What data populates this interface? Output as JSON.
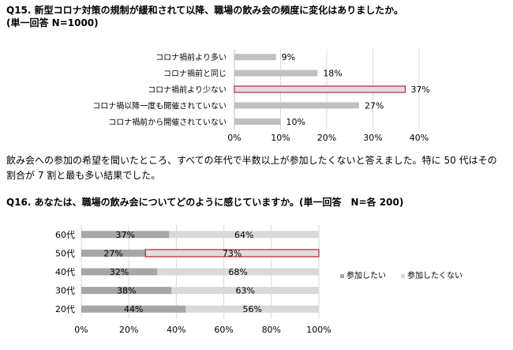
{
  "q15": {
    "title": "Q15.  新型コロナ対策の規制が緩和されて以降、職場の飲み会の頻度に変化はありましたか。",
    "subtitle": "(単一回答 N=1000)"
  },
  "paragraph": "飲み会への参加の希望を聞いたところ、すべての年代で半数以上が参加したくないと答えました。特に 50 代はその割合が 7 割と最も多い結果でした。",
  "q16": {
    "title": "Q16.  あなたは、職場の飲み会についてどのように感じていますか。(単一回答　N=各 200)"
  },
  "colors": {
    "bar_gray": "#c0c0c0",
    "highlight_fill": "#dedede",
    "highlight_border": "#c0202e",
    "series_dark": "#a6a6a6",
    "series_light": "#d9d9d9",
    "grid": "#d9d9d9",
    "axis_text": "#000000"
  },
  "chart_data": [
    {
      "type": "bar",
      "orientation": "horizontal",
      "categories": [
        "コロナ禍前より多い",
        "コロナ禍前と同じ",
        "コロナ禍前より少ない",
        "コロナ禍以降一度も開催されていない",
        "コロナ禍前から開催されていない"
      ],
      "values": [
        9,
        18,
        37,
        27,
        10
      ],
      "value_labels": [
        "9%",
        "18%",
        "37%",
        "27%",
        "10%"
      ],
      "highlight_index": 2,
      "xlim": [
        0,
        40
      ],
      "x_ticks": [
        "0%",
        "10%",
        "20%",
        "30%",
        "40%"
      ],
      "grid": true
    },
    {
      "type": "bar",
      "orientation": "horizontal",
      "stacked": true,
      "categories": [
        "60代",
        "50代",
        "40代",
        "30代",
        "20代"
      ],
      "series": [
        {
          "name": "参加したい",
          "values": [
            37,
            27,
            32,
            38,
            44
          ],
          "labels": [
            "37%",
            "27%",
            "32%",
            "38%",
            "44%"
          ]
        },
        {
          "name": "参加したくない",
          "values": [
            64,
            73,
            68,
            63,
            56
          ],
          "labels": [
            "64%",
            "73%",
            "68%",
            "63%",
            "56%"
          ]
        }
      ],
      "highlight_index": 1,
      "xlim": [
        0,
        100
      ],
      "x_ticks": [
        "0%",
        "20%",
        "40%",
        "60%",
        "80%",
        "100%"
      ],
      "legend_position": "right",
      "grid": true
    }
  ]
}
